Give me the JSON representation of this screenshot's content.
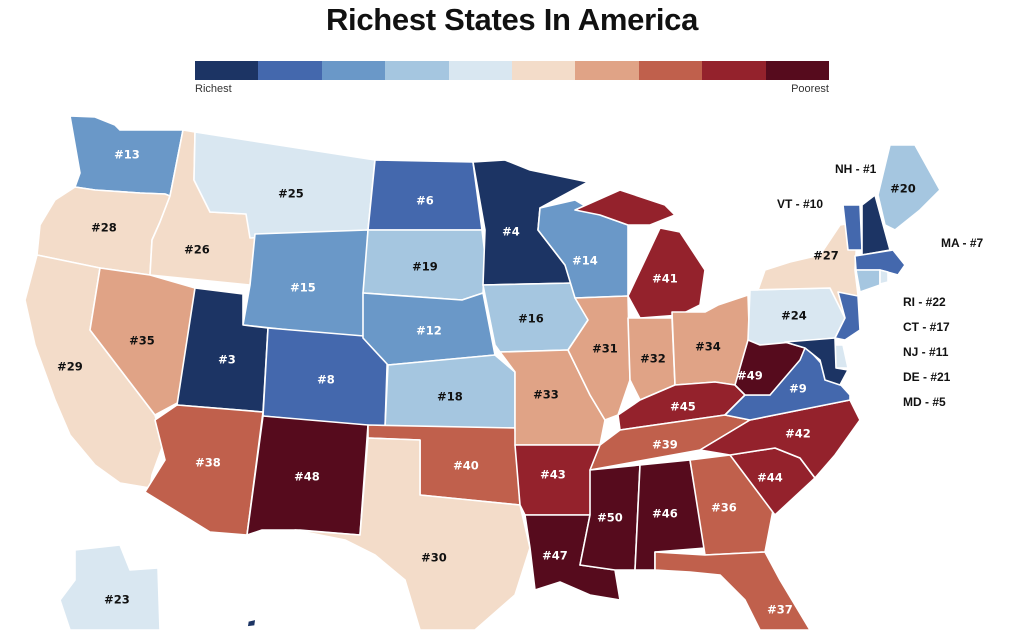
{
  "title": "Richest States In America",
  "legend": {
    "low_label": "Richest",
    "high_label": "Poorest",
    "colors": [
      "#1c3464",
      "#4468ad",
      "#6a98c8",
      "#a5c6e0",
      "#d9e7f1",
      "#f3dcc9",
      "#e0a386",
      "#c0604c",
      "#94222c",
      "#560b1d"
    ]
  },
  "states": [
    {
      "id": "WA",
      "rank": "#13",
      "bin": 2
    },
    {
      "id": "OR",
      "rank": "#28",
      "bin": 5
    },
    {
      "id": "CA",
      "rank": "#29",
      "bin": 5
    },
    {
      "id": "ID",
      "rank": "#26",
      "bin": 5
    },
    {
      "id": "NV",
      "rank": "#35",
      "bin": 6
    },
    {
      "id": "MT",
      "rank": "#25",
      "bin": 4
    },
    {
      "id": "WY",
      "rank": "#15",
      "bin": 2
    },
    {
      "id": "UT",
      "rank": "#3",
      "bin": 0
    },
    {
      "id": "AZ",
      "rank": "#38",
      "bin": 7
    },
    {
      "id": "CO",
      "rank": "#8",
      "bin": 1
    },
    {
      "id": "NM",
      "rank": "#48",
      "bin": 9
    },
    {
      "id": "ND",
      "rank": "#6",
      "bin": 1
    },
    {
      "id": "SD",
      "rank": "#19",
      "bin": 3
    },
    {
      "id": "NE",
      "rank": "#12",
      "bin": 2
    },
    {
      "id": "KS",
      "rank": "#18",
      "bin": 3
    },
    {
      "id": "OK",
      "rank": "#40",
      "bin": 7
    },
    {
      "id": "TX",
      "rank": "#30",
      "bin": 5
    },
    {
      "id": "MN",
      "rank": "#4",
      "bin": 0
    },
    {
      "id": "IA",
      "rank": "#16",
      "bin": 3
    },
    {
      "id": "MO",
      "rank": "#33",
      "bin": 6
    },
    {
      "id": "AR",
      "rank": "#43",
      "bin": 8
    },
    {
      "id": "LA",
      "rank": "#47",
      "bin": 9
    },
    {
      "id": "WI",
      "rank": "#14",
      "bin": 2
    },
    {
      "id": "MI",
      "rank": "#41",
      "bin": 8
    },
    {
      "id": "IL",
      "rank": "#31",
      "bin": 6
    },
    {
      "id": "IN",
      "rank": "#32",
      "bin": 6
    },
    {
      "id": "OH",
      "rank": "#34",
      "bin": 6
    },
    {
      "id": "KY",
      "rank": "#45",
      "bin": 8
    },
    {
      "id": "TN",
      "rank": "#39",
      "bin": 7
    },
    {
      "id": "MS",
      "rank": "#50",
      "bin": 9
    },
    {
      "id": "AL",
      "rank": "#46",
      "bin": 9
    },
    {
      "id": "GA",
      "rank": "#36",
      "bin": 7
    },
    {
      "id": "FL",
      "rank": "#37",
      "bin": 7
    },
    {
      "id": "SC",
      "rank": "#44",
      "bin": 8
    },
    {
      "id": "NC",
      "rank": "#42",
      "bin": 8
    },
    {
      "id": "VA",
      "rank": "#9",
      "bin": 1
    },
    {
      "id": "WV",
      "rank": "#49",
      "bin": 9
    },
    {
      "id": "PA",
      "rank": "#24",
      "bin": 4
    },
    {
      "id": "NY",
      "rank": "#27",
      "bin": 5
    },
    {
      "id": "ME",
      "rank": "#20",
      "bin": 3
    },
    {
      "id": "AK",
      "rank": "#23",
      "bin": 4
    },
    {
      "id": "NH",
      "rank": "",
      "bin": 0
    },
    {
      "id": "VT",
      "rank": "",
      "bin": 1
    },
    {
      "id": "MA",
      "rank": "",
      "bin": 1
    },
    {
      "id": "RI",
      "rank": "",
      "bin": 4
    },
    {
      "id": "CT",
      "rank": "",
      "bin": 3
    },
    {
      "id": "NJ",
      "rank": "",
      "bin": 1
    },
    {
      "id": "DE",
      "rank": "",
      "bin": 4
    },
    {
      "id": "MD",
      "rank": "",
      "bin": 0
    },
    {
      "id": "HI",
      "rank": "",
      "bin": 0
    }
  ],
  "side_labels": [
    "NH - #1",
    "VT - #10",
    "MA - #7",
    "RI - #22",
    "CT - #17",
    "NJ - #11",
    "DE - #21",
    "MD - #5"
  ]
}
